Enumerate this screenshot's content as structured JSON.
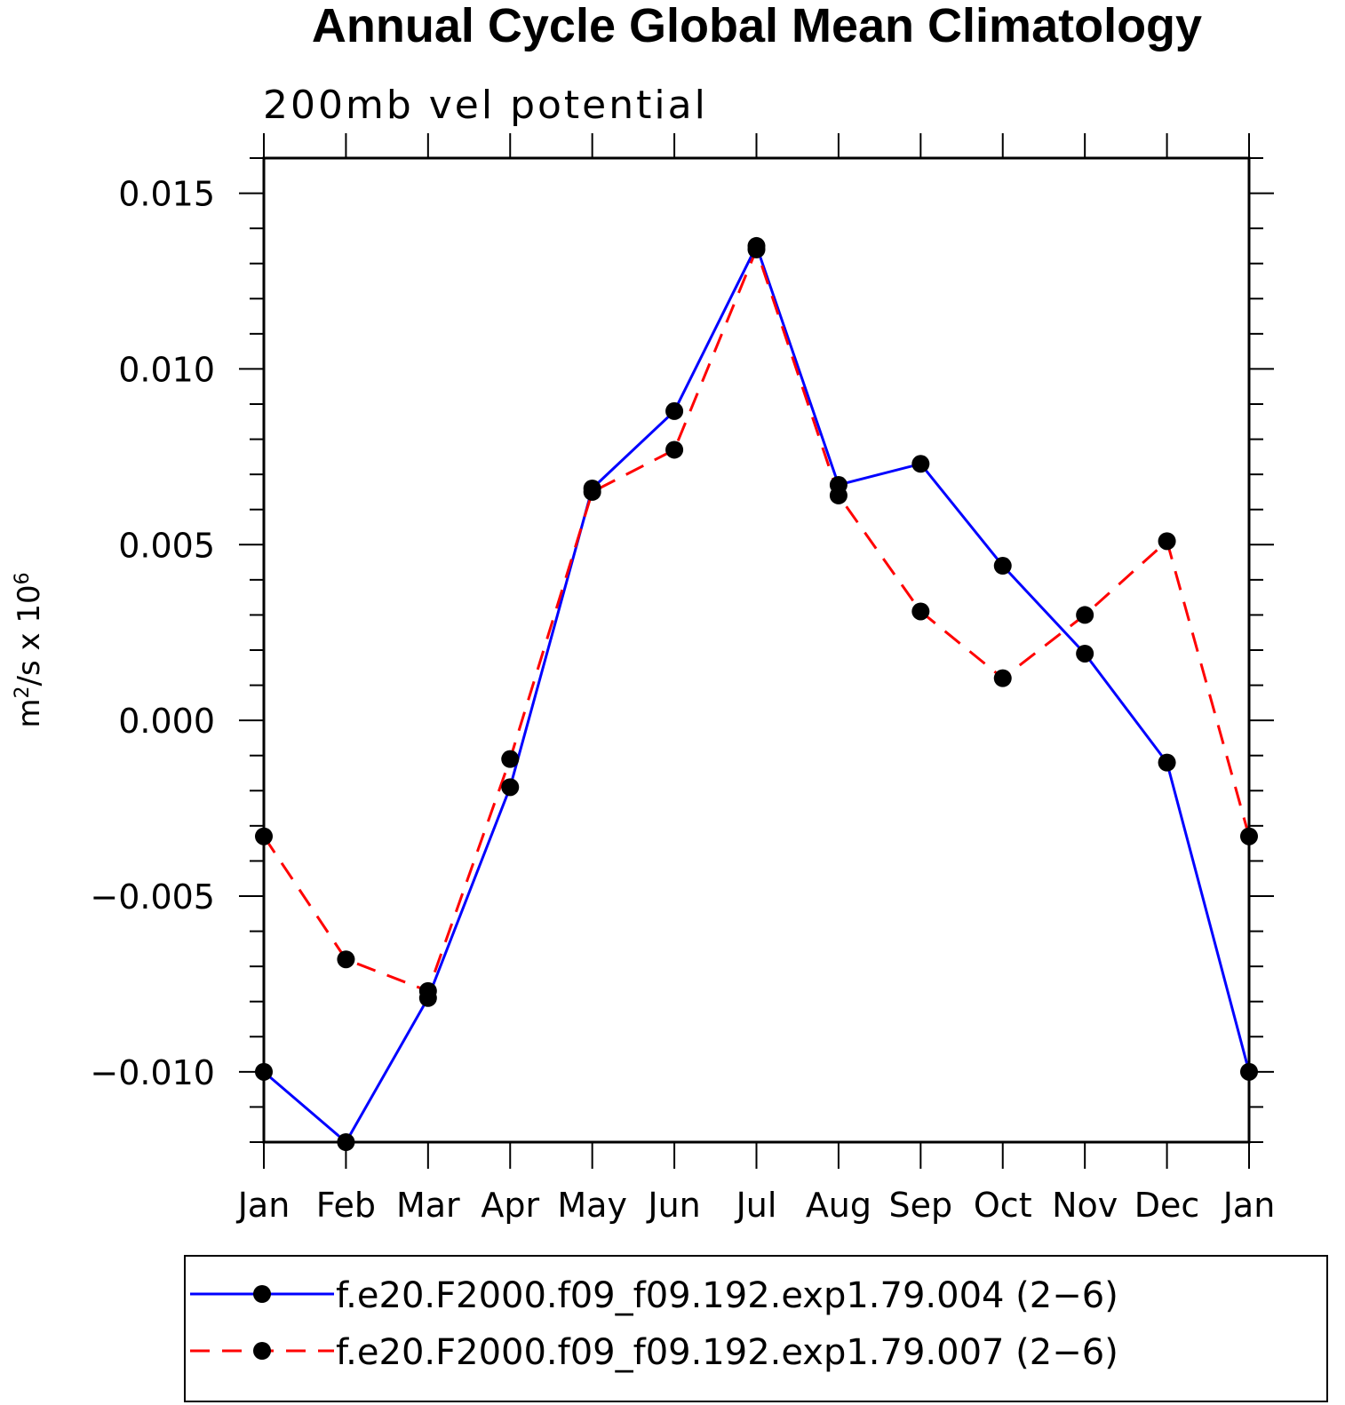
{
  "chart_data": {
    "type": "line",
    "title": "Annual Cycle Global Mean Climatology",
    "subtitle": "200mb vel potential",
    "ylabel_base": "m",
    "ylabel_exp": "2",
    "ylabel_rest": "/s x 10",
    "ylabel_exp2": "6",
    "categories": [
      "Jan",
      "Feb",
      "Mar",
      "Apr",
      "May",
      "Jun",
      "Jul",
      "Aug",
      "Sep",
      "Oct",
      "Nov",
      "Dec",
      "Jan"
    ],
    "ylim": [
      -0.012,
      0.016
    ],
    "yticks": [
      {
        "value": 0.015,
        "label": "0.015"
      },
      {
        "value": 0.01,
        "label": "0.010"
      },
      {
        "value": 0.005,
        "label": "0.005"
      },
      {
        "value": 0.0,
        "label": "0.000"
      },
      {
        "value": -0.005,
        "label": "−0.005"
      },
      {
        "value": -0.01,
        "label": "−0.010"
      }
    ],
    "series": [
      {
        "name": "f.e20.F2000.f09_f09.192.exp1.79.004 (2−6)",
        "color": "#0000ff",
        "dash": "solid",
        "values": [
          -0.01,
          -0.012,
          -0.0079,
          -0.0019,
          0.0066,
          0.0088,
          0.0135,
          0.0067,
          0.0073,
          0.0044,
          0.0019,
          -0.0012,
          -0.01
        ]
      },
      {
        "name": "f.e20.F2000.f09_f09.192.exp1.79.007 (2−6)",
        "color": "#ff0000",
        "dash": "dashed",
        "values": [
          -0.0033,
          -0.0068,
          -0.0077,
          -0.0011,
          0.0065,
          0.0077,
          0.0134,
          0.0064,
          0.0031,
          0.0012,
          0.003,
          0.0051,
          -0.0033
        ]
      }
    ],
    "marker_color": "#000000",
    "legend_position": "bottom"
  }
}
